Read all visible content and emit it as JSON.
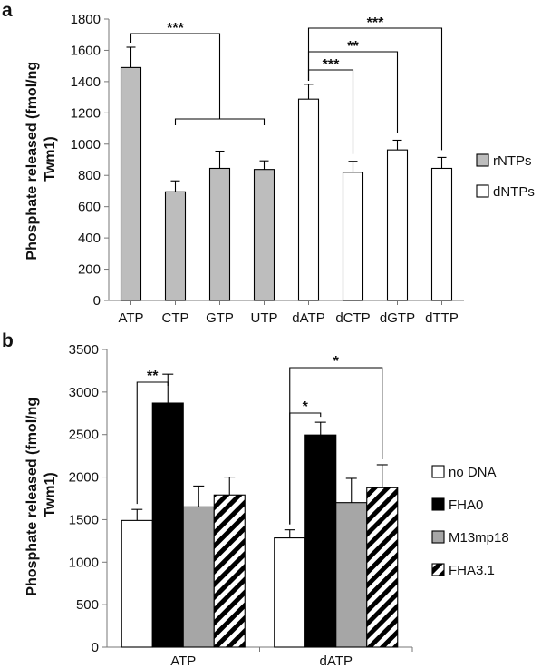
{
  "chart_data": [
    {
      "panel_label": "a",
      "type": "bar",
      "categories": [
        "ATP",
        "CTP",
        "GTP",
        "UTP",
        "dATP",
        "dCTP",
        "dGTP",
        "dTTP"
      ],
      "values": [
        1490,
        695,
        845,
        838,
        1288,
        820,
        963,
        845
      ],
      "errors": [
        130,
        70,
        110,
        55,
        95,
        70,
        62,
        70
      ],
      "groups": [
        "rNTPs",
        "rNTPs",
        "rNTPs",
        "rNTPs",
        "dNTPs",
        "dNTPs",
        "dNTPs",
        "dNTPs"
      ],
      "series": [
        {
          "name": "rNTPs",
          "color": "#bdbdbd"
        },
        {
          "name": "dNTPs",
          "color": "#ffffff"
        }
      ],
      "ylabel_lines": [
        "Phosphate released (fmol/ng",
        "Twm1)"
      ],
      "yticks": [
        0,
        200,
        400,
        600,
        800,
        1000,
        1200,
        1400,
        1600,
        1800
      ],
      "ylim": [
        0,
        1800
      ],
      "legend_position": "right",
      "significance": [
        {
          "from": 0,
          "to": [
            1,
            2,
            3
          ],
          "label": "***"
        },
        {
          "from": 4,
          "to": [
            7
          ],
          "label": "***"
        },
        {
          "from": 4,
          "to": [
            6
          ],
          "label": "**"
        },
        {
          "from": 4,
          "to": [
            5
          ],
          "label": "***"
        }
      ]
    },
    {
      "panel_label": "b",
      "type": "bar",
      "categories": [
        "ATP",
        "dATP"
      ],
      "series": [
        {
          "name": "no DNA",
          "values": [
            1490,
            1285
          ],
          "errors": [
            130,
            95
          ],
          "fill": "#ffffff",
          "pattern": "none"
        },
        {
          "name": "FHA0",
          "values": [
            2870,
            2495
          ],
          "errors": [
            340,
            150
          ],
          "fill": "#000000",
          "pattern": "none"
        },
        {
          "name": "M13mp18",
          "values": [
            1650,
            1700
          ],
          "errors": [
            245,
            285
          ],
          "fill": "#a6a6a6",
          "pattern": "none"
        },
        {
          "name": "FHA3.1",
          "values": [
            1790,
            1875
          ],
          "errors": [
            210,
            270
          ],
          "fill": "#ffffff",
          "pattern": "diagonal-hatch"
        }
      ],
      "ylabel_lines": [
        "Phosphate released (fmol/ng",
        "Twm1)"
      ],
      "yticks": [
        0,
        500,
        1000,
        1500,
        2000,
        2500,
        3000,
        3500
      ],
      "ylim": [
        0,
        3500
      ],
      "legend_position": "right",
      "significance": [
        {
          "category": 0,
          "from_series": 0,
          "to_series": 1,
          "label": "**"
        },
        {
          "category": 1,
          "from_series": 0,
          "to_series": 1,
          "label": "*"
        },
        {
          "category": 1,
          "from_series": 0,
          "to_series": 3,
          "label": "*"
        }
      ]
    }
  ]
}
